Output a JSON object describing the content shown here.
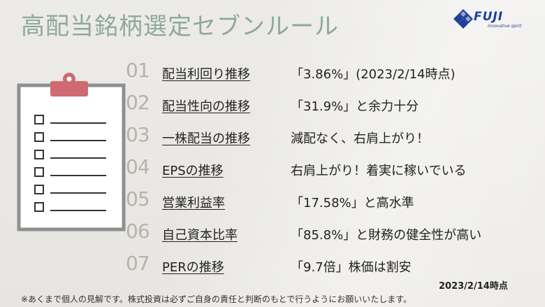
{
  "title": "高配当銘柄選定セブンルール",
  "logo": {
    "name": "FUJI",
    "tagline": "innovative spirit",
    "color": "#1f3f9a"
  },
  "rules": [
    {
      "num": "01",
      "label": "配当利回り推移",
      "desc": "「3.86%」(2023/2/14時点)"
    },
    {
      "num": "02",
      "label": "配当性向の推移",
      "desc": "「31.9%」と余力十分"
    },
    {
      "num": "03",
      "label": "一株配当の推移",
      "desc": "減配なく、右肩上がり！"
    },
    {
      "num": "04",
      "label": "EPSの推移",
      "desc": "右肩上がり！着実に稼いでいる"
    },
    {
      "num": "05",
      "label": "営業利益率",
      "desc": "「17.58%」と高水準"
    },
    {
      "num": "06",
      "label": "自己資本比率",
      "desc": "「85.8%」と財務の健全性が高い"
    },
    {
      "num": "07",
      "label": "PERの推移",
      "desc": "「9.7倍」株価は割安"
    }
  ],
  "date": "2023/2/14時点",
  "note": "※あくまで個人の見解です。株式投資は必ずご自身の責任と判断のもとで行うようにお願いいたします。",
  "colors": {
    "title": "#8ea99c",
    "clipboard_border": "#8f8f8f",
    "clip": "#d06a72",
    "number": "#b6b3ad"
  }
}
